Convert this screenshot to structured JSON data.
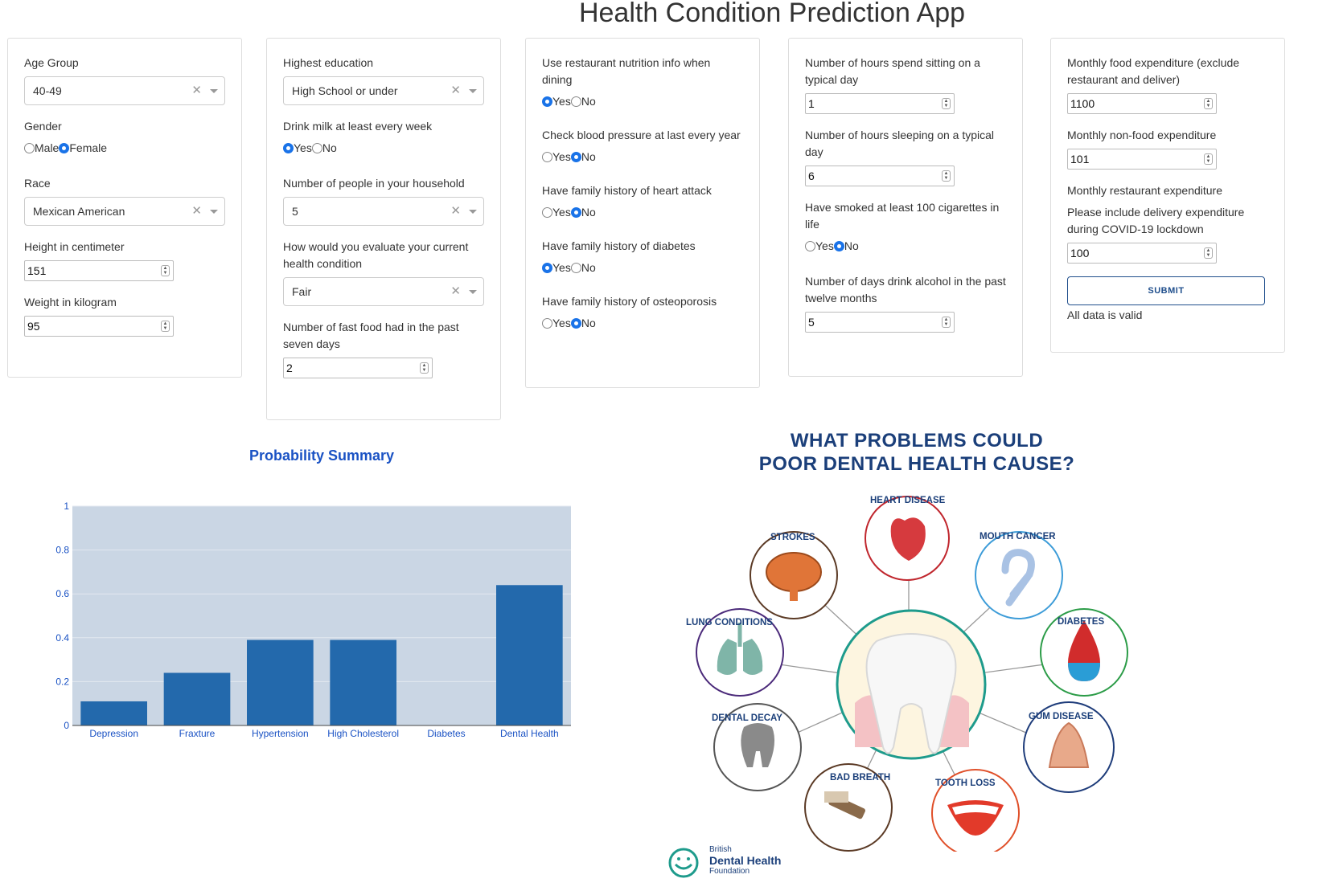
{
  "app_title": "Health Condition Prediction App",
  "col1": {
    "age_label": "Age Group",
    "age_value": "40-49",
    "gender_label": "Gender",
    "gender_opt1": "Male",
    "gender_opt2": "Female",
    "gender_selected": "Female",
    "race_label": "Race",
    "race_value": "Mexican American",
    "height_label": "Height in centimeter",
    "height_value": "151",
    "weight_label": "Weight in kilogram",
    "weight_value": "95"
  },
  "col2": {
    "edu_label": "Highest education",
    "edu_value": "High School or under",
    "milk_label": "Drink milk at least every week",
    "milk_selected": "Yes",
    "household_label": "Number of people in your household",
    "household_value": "5",
    "health_label": "How would you evaluate your current health condition",
    "health_value": "Fair",
    "fastfood_label": "Number of fast food had in the past seven days",
    "fastfood_value": "2"
  },
  "col3": {
    "nutrition_label": "Use restaurant nutrition info when dining",
    "nutrition_selected": "Yes",
    "bp_label": "Check blood pressure at last every year",
    "bp_selected": "No",
    "heart_label": "Have family history of heart attack",
    "heart_selected": "No",
    "diabetes_label": "Have family history of diabetes",
    "diabetes_selected": "Yes",
    "osteo_label": "Have family history of osteoporosis",
    "osteo_selected": "No"
  },
  "col4": {
    "sitting_label": "Number of hours spend sitting on a typical day",
    "sitting_value": "1",
    "sleeping_label": "Number of hours sleeping on a typical day",
    "sleeping_value": "6",
    "smoke_label": "Have smoked at least 100 cigarettes in life",
    "smoke_selected": "No",
    "alcohol_label": "Number of days drink alcohol in the past twelve months",
    "alcohol_value": "5"
  },
  "col5": {
    "food_label": "Monthly food expenditure (exclude restaurant and deliver)",
    "food_value": "1100",
    "nonfood_label": "Monthly non-food expenditure",
    "nonfood_value": "101",
    "restaurant_label": "Monthly restaurant expenditure",
    "restaurant_note": "Please include delivery expenditure during COVID-19 lockdown",
    "restaurant_value": "100",
    "submit_label": "SUBMIT",
    "status_text": "All data is valid"
  },
  "radio_yes": "Yes",
  "radio_no": "No",
  "chart_data": {
    "type": "bar",
    "title": "Probability Summary",
    "categories": [
      "Depression",
      "Fraxture",
      "Hypertension",
      "High Cholesterol",
      "Diabetes",
      "Dental Health"
    ],
    "values": [
      0.11,
      0.24,
      0.39,
      0.39,
      0.0,
      0.64
    ],
    "ylim": [
      0,
      1
    ],
    "yticks": [
      0,
      0.2,
      0.4,
      0.6,
      0.8,
      1
    ],
    "ytick_labels": [
      "0",
      "0.2",
      "0.4",
      "0.6",
      "0.8",
      "1"
    ],
    "xlabel": "",
    "ylabel": "",
    "bar_color": "#2369ac",
    "plot_bg": "#cad6e4",
    "tick_color": "#1a52c4"
  },
  "infographic": {
    "title_line1": "WHAT PROBLEMS COULD",
    "title_line2": "POOR DENTAL HEALTH CAUSE?",
    "labels": [
      "HEART DISEASE",
      "STROKES",
      "MOUTH CANCER",
      "LUNG CONDITIONS",
      "DIABETES",
      "DENTAL DECAY",
      "GUM DISEASE",
      "BAD BREATH",
      "TOOTH LOSS"
    ],
    "logo_line1": "British",
    "logo_line2": "Dental Health",
    "logo_line3": "Foundation"
  }
}
